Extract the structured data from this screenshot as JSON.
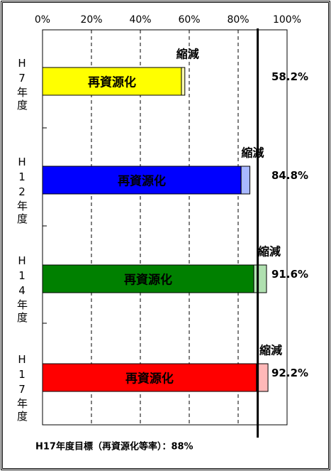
{
  "chart_data": {
    "type": "stacked-barh",
    "categories": [
      "H7年度",
      "H12年度",
      "H14年度",
      "H17年度"
    ],
    "series": [
      {
        "name": "再資源化",
        "colors": [
          "#ffff00",
          "#0000ff",
          "#008000",
          "#ff0000"
        ],
        "values": [
          56.8,
          81.2,
          86.4,
          87.5
        ]
      },
      {
        "name": "縮減",
        "colors": [
          "#ffffb0",
          "#a8b8ff",
          "#b0e0b0",
          "#ffb8b8"
        ],
        "values": [
          1.4,
          3.6,
          5.2,
          4.7
        ]
      }
    ],
    "total_labels": [
      "58.2%",
      "84.8%",
      "91.6%",
      "92.2%"
    ],
    "xlim": [
      0,
      100
    ],
    "xticks": [
      {
        "value": 0,
        "label": "0%"
      },
      {
        "value": 20,
        "label": "20%"
      },
      {
        "value": 40,
        "label": "40%"
      },
      {
        "value": 60,
        "label": "60%"
      },
      {
        "value": 80,
        "label": "80%"
      },
      {
        "value": 100,
        "label": "100%"
      }
    ],
    "grid": true,
    "target": 88,
    "target_label": "H17年度目標（再資源化等率）：88%"
  }
}
